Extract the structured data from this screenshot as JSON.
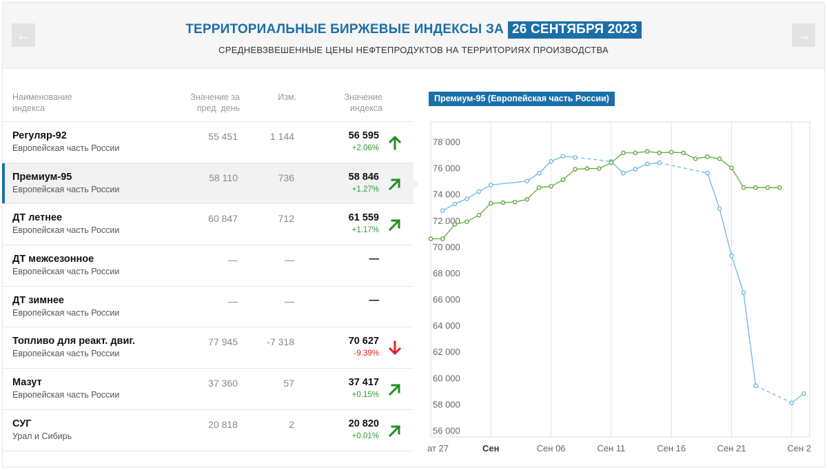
{
  "header": {
    "title": "ТЕРРИТОРИАЛЬНЫЕ БИРЖЕВЫЕ ИНДЕКСЫ ЗА",
    "date": "26 СЕНТЯБРЯ 2023",
    "subtitle": "СРЕДНЕВЗВЕШЕННЫЕ ЦЕНЫ НЕФТЕПРОДУКТОВ НА ТЕРРИТОРИЯХ ПРОИЗВОДСТВА",
    "prev_icon": "←",
    "next_icon": "→"
  },
  "table": {
    "headers": {
      "name_line1": "Наименование",
      "name_line2": "индекса",
      "prev_line1": "Значение за",
      "prev_line2": "пред. день",
      "change": "Изм.",
      "value_line1": "Значение",
      "value_line2": "индекса"
    },
    "rows": [
      {
        "name": "Регуляр-92",
        "region": "Европейская часть России",
        "prev": "55 451",
        "change": "1 144",
        "value": "56 595",
        "pct": "+2.06%",
        "trend": "up"
      },
      {
        "name": "Премиум-95",
        "region": "Европейская часть России",
        "prev": "58 110",
        "change": "736",
        "value": "58 846",
        "pct": "+1.27%",
        "trend": "up-right"
      },
      {
        "name": "ДТ летнее",
        "region": "Европейская часть России",
        "prev": "60 847",
        "change": "712",
        "value": "61 559",
        "pct": "+1.17%",
        "trend": "up-right"
      },
      {
        "name": "ДТ межсезонное",
        "region": "Европейская часть России",
        "prev": "—",
        "change": "—",
        "value": "—",
        "pct": "",
        "trend": "none"
      },
      {
        "name": "ДТ зимнее",
        "region": "Европейская часть России",
        "prev": "—",
        "change": "—",
        "value": "—",
        "pct": "",
        "trend": "none"
      },
      {
        "name": "Топливо для реакт. двиг.",
        "region": "Европейская часть России",
        "prev": "77 945",
        "change": "-7 318",
        "value": "70 627",
        "pct": "-9.39%",
        "trend": "down"
      },
      {
        "name": "Мазут",
        "region": "Европейская часть России",
        "prev": "37 360",
        "change": "57",
        "value": "37 417",
        "pct": "+0.15%",
        "trend": "up-right"
      },
      {
        "name": "СУГ",
        "region": "Урал и Сибирь",
        "prev": "20 818",
        "change": "2",
        "value": "20 820",
        "pct": "+0.01%",
        "trend": "up-right"
      }
    ]
  },
  "colors": {
    "accent": "#1b6fa8",
    "up": "#1f8f1f",
    "down": "#e02020",
    "series_blue": "#6bb9e0",
    "series_green": "#5aaa3c"
  },
  "chart_data": {
    "type": "line",
    "title": "Премиум-95 (Европейская часть России)",
    "ylim": [
      55500,
      79500
    ],
    "yticks": [
      56000,
      58000,
      60000,
      62000,
      64000,
      66000,
      68000,
      70000,
      72000,
      74000,
      76000,
      78000
    ],
    "ytick_labels": [
      "56 000",
      "58 000",
      "60 000",
      "62 000",
      "64 000",
      "66 000",
      "68 000",
      "70 000",
      "72 000",
      "74 000",
      "76 000",
      "78 000"
    ],
    "xlim": [
      0,
      31.5
    ],
    "xticks": [
      {
        "x": 0,
        "label": "ат 27",
        "bold": false
      },
      {
        "x": 5,
        "label": "Сен",
        "bold": true
      },
      {
        "x": 10,
        "label": "Сен 06",
        "bold": false
      },
      {
        "x": 15,
        "label": "Сен 11",
        "bold": false
      },
      {
        "x": 20,
        "label": "Сен 16",
        "bold": false
      },
      {
        "x": 25,
        "label": "Сен 21",
        "bold": false
      },
      {
        "x": 30,
        "label": "Сен 2",
        "bold": false
      }
    ],
    "series": [
      {
        "name": "blue",
        "points": [
          [
            1,
            72750
          ],
          [
            2,
            73250
          ],
          [
            3,
            73650
          ],
          [
            4,
            74200
          ],
          [
            5,
            74700
          ],
          [
            8,
            75000
          ],
          [
            9,
            75600
          ],
          [
            10,
            76500
          ],
          [
            11,
            76900
          ],
          [
            12,
            76800
          ],
          [
            15,
            76500
          ],
          [
            16,
            75600
          ],
          [
            17,
            75900
          ],
          [
            18,
            76300
          ],
          [
            19,
            76400
          ],
          [
            23,
            75600
          ],
          [
            24,
            72900
          ],
          [
            25,
            69300
          ],
          [
            26,
            66500
          ],
          [
            27,
            59400
          ],
          [
            30,
            58100
          ],
          [
            31,
            58800
          ]
        ],
        "dashed_after": [
          [
            12,
            15
          ],
          [
            19,
            23
          ],
          [
            27,
            30
          ]
        ]
      },
      {
        "name": "green",
        "points": [
          [
            0,
            70600
          ],
          [
            1,
            70600
          ],
          [
            2,
            71700
          ],
          [
            3,
            71900
          ],
          [
            4,
            72400
          ],
          [
            5,
            73300
          ],
          [
            6,
            73350
          ],
          [
            7,
            73400
          ],
          [
            8,
            73600
          ],
          [
            9,
            74500
          ],
          [
            10,
            74600
          ],
          [
            11,
            75100
          ],
          [
            12,
            75900
          ],
          [
            13,
            75950
          ],
          [
            14,
            75950
          ],
          [
            15,
            76400
          ],
          [
            16,
            77150
          ],
          [
            17,
            77150
          ],
          [
            18,
            77250
          ],
          [
            19,
            77150
          ],
          [
            20,
            77200
          ],
          [
            21,
            77150
          ],
          [
            22,
            76700
          ],
          [
            23,
            76850
          ],
          [
            24,
            76700
          ],
          [
            25,
            76000
          ],
          [
            26,
            74500
          ],
          [
            27,
            74500
          ],
          [
            28,
            74500
          ],
          [
            29,
            74500
          ]
        ],
        "dashed_after": [
          [
            24,
            29
          ]
        ]
      }
    ]
  }
}
